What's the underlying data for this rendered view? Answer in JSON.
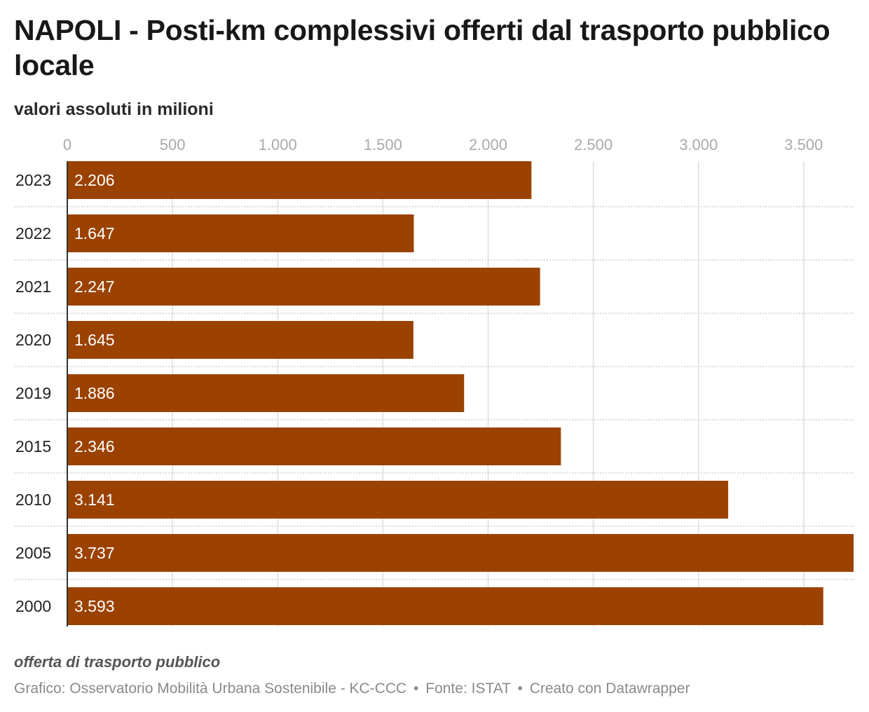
{
  "title": "NAPOLI - Posti-km complessivi offerti dal trasporto pubblico locale",
  "subtitle": "valori assoluti in milioni",
  "notes": "offerta di trasporto pubblico",
  "footer": {
    "credit": "Grafico: Osservatorio Mobilità Urbana Sostenibile - KC-CCC",
    "separator": "•",
    "source": "Fonte: ISTAT",
    "made_with": "Creato con Datawrapper"
  },
  "colors": {
    "bar": "#9b4200",
    "bar_label": "#ffffff",
    "grid": "#dddddd",
    "tick_label": "#aaaaaa",
    "category_label": "#222222"
  },
  "chart_data": {
    "type": "bar",
    "orientation": "horizontal",
    "categories": [
      "2023",
      "2022",
      "2021",
      "2020",
      "2019",
      "2015",
      "2010",
      "2005",
      "2000"
    ],
    "values": [
      2206,
      1647,
      2247,
      1645,
      1886,
      2346,
      3141,
      3737,
      3593
    ],
    "value_labels": [
      "2.206",
      "1.647",
      "2.247",
      "1.645",
      "1.886",
      "2.346",
      "3.141",
      "3.737",
      "3.593"
    ],
    "xlim": [
      0,
      3737
    ],
    "xticks": [
      0,
      500,
      1000,
      1500,
      2000,
      2500,
      3000,
      3500
    ],
    "xtick_labels": [
      "0",
      "500",
      "1.000",
      "1.500",
      "2.000",
      "2.500",
      "3.000",
      "3.500"
    ],
    "axis_position": "top",
    "grid": true
  }
}
